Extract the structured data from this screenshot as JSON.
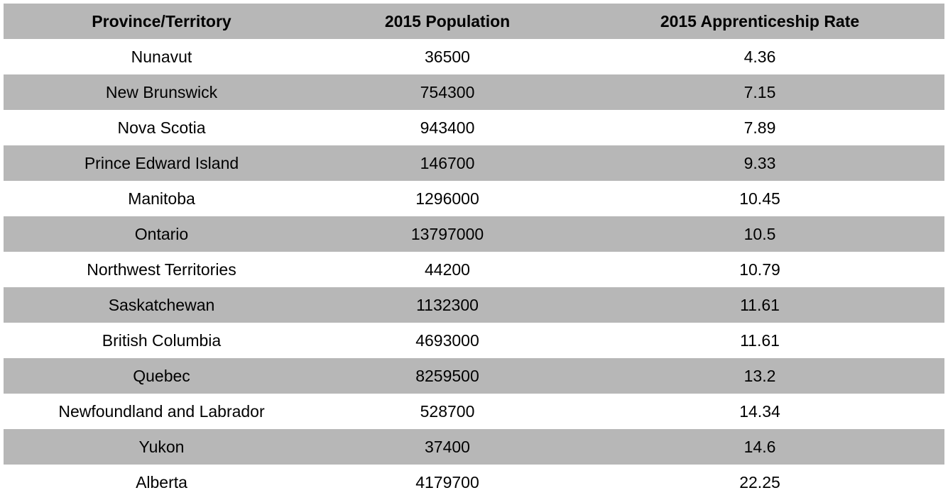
{
  "chart_data": {
    "type": "table",
    "columns": [
      "Province/Territory",
      "2015 Population",
      "2015 Apprenticeship Rate"
    ],
    "rows": [
      [
        "Nunavut",
        "36500",
        "4.36"
      ],
      [
        "New Brunswick",
        "754300",
        "7.15"
      ],
      [
        "Nova Scotia",
        "943400",
        "7.89"
      ],
      [
        "Prince Edward Island",
        "146700",
        "9.33"
      ],
      [
        "Manitoba",
        "1296000",
        "10.45"
      ],
      [
        "Ontario",
        "13797000",
        "10.5"
      ],
      [
        "Northwest Territories",
        "44200",
        "10.79"
      ],
      [
        "Saskatchewan",
        "1132300",
        "11.61"
      ],
      [
        "British Columbia",
        "4693000",
        "11.61"
      ],
      [
        "Quebec",
        "8259500",
        "13.2"
      ],
      [
        "Newfoundland and Labrador",
        "528700",
        "14.34"
      ],
      [
        "Yukon",
        "37400",
        "14.6"
      ],
      [
        "Alberta",
        "4179700",
        "22.25"
      ]
    ],
    "colors": {
      "shaded_row": "#b7b7b7",
      "plain_row": "#ffffff"
    }
  }
}
